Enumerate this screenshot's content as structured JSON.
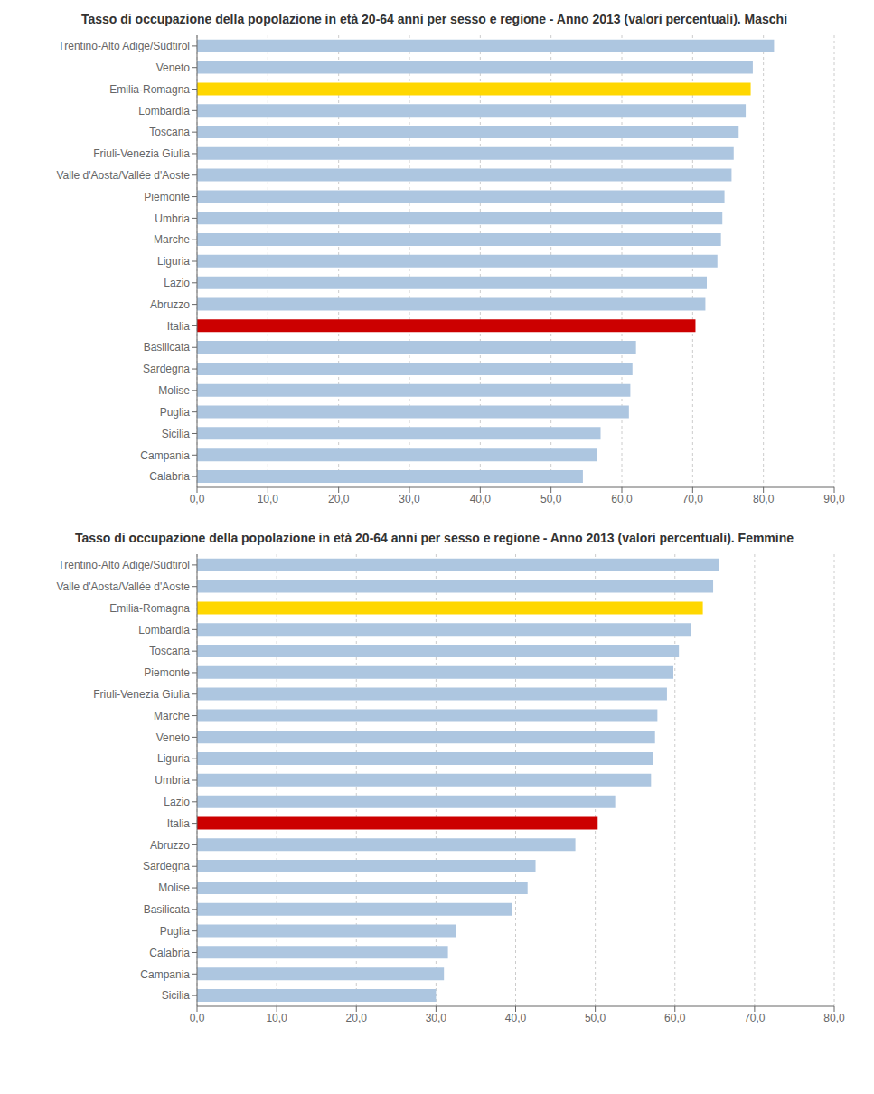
{
  "chart_data": [
    {
      "type": "bar",
      "orientation": "horizontal",
      "title": "Tasso di occupazione della popolazione in età 20-64 anni per sesso e regione - Anno 2013  (valori percentuali). Maschi",
      "categories": [
        "Trentino-Alto Adige/Südtirol",
        "Veneto",
        "Emilia-Romagna",
        "Lombardia",
        "Toscana",
        "Friuli-Venezia Giulia",
        "Valle d'Aosta/Vallée d'Aoste",
        "Piemonte",
        "Umbria",
        "Marche",
        "Liguria",
        "Lazio",
        "Abruzzo",
        "Italia",
        "Basilicata",
        "Sardegna",
        "Molise",
        "Puglia",
        "Sicilia",
        "Campania",
        "Calabria"
      ],
      "values": [
        81.5,
        78.5,
        78.2,
        77.5,
        76.5,
        75.8,
        75.5,
        74.5,
        74.2,
        74.0,
        73.5,
        72.0,
        71.8,
        70.4,
        62.0,
        61.5,
        61.2,
        61.0,
        57.0,
        56.5,
        54.5
      ],
      "colors": [
        "#adc6e0",
        "#adc6e0",
        "#FFD700",
        "#adc6e0",
        "#adc6e0",
        "#adc6e0",
        "#adc6e0",
        "#adc6e0",
        "#adc6e0",
        "#adc6e0",
        "#adc6e0",
        "#adc6e0",
        "#adc6e0",
        "#CC0000",
        "#adc6e0",
        "#adc6e0",
        "#adc6e0",
        "#adc6e0",
        "#adc6e0",
        "#adc6e0",
        "#adc6e0"
      ],
      "xlim": [
        0,
        90
      ],
      "xticks": [
        {
          "value": 0,
          "label": "0,0"
        },
        {
          "value": 10,
          "label": "10,0"
        },
        {
          "value": 20,
          "label": "20,0"
        },
        {
          "value": 30,
          "label": "30,0"
        },
        {
          "value": 40,
          "label": "40,0"
        },
        {
          "value": 50,
          "label": "50,0"
        },
        {
          "value": 60,
          "label": "60,0"
        },
        {
          "value": 70,
          "label": "70,0"
        },
        {
          "value": 80,
          "label": "80,0"
        },
        {
          "value": 90,
          "label": "90,0"
        }
      ],
      "grid": true
    },
    {
      "type": "bar",
      "orientation": "horizontal",
      "title": "Tasso di occupazione della popolazione in età 20-64 anni per sesso e regione - Anno 2013  (valori percentuali). Femmine",
      "categories": [
        "Trentino-Alto Adige/Südtirol",
        "Valle d'Aosta/Vallée d'Aoste",
        "Emilia-Romagna",
        "Lombardia",
        "Toscana",
        "Piemonte",
        "Friuli-Venezia Giulia",
        "Marche",
        "Veneto",
        "Liguria",
        "Umbria",
        "Lazio",
        "Italia",
        "Abruzzo",
        "Sardegna",
        "Molise",
        "Basilicata",
        "Puglia",
        "Calabria",
        "Campania",
        "Sicilia"
      ],
      "values": [
        65.5,
        64.8,
        63.5,
        62.0,
        60.5,
        59.8,
        59.0,
        57.8,
        57.5,
        57.2,
        57.0,
        52.5,
        50.3,
        47.5,
        42.5,
        41.5,
        39.5,
        32.5,
        31.5,
        31.0,
        30.0
      ],
      "colors": [
        "#adc6e0",
        "#adc6e0",
        "#FFD700",
        "#adc6e0",
        "#adc6e0",
        "#adc6e0",
        "#adc6e0",
        "#adc6e0",
        "#adc6e0",
        "#adc6e0",
        "#adc6e0",
        "#adc6e0",
        "#CC0000",
        "#adc6e0",
        "#adc6e0",
        "#adc6e0",
        "#adc6e0",
        "#adc6e0",
        "#adc6e0",
        "#adc6e0",
        "#adc6e0"
      ],
      "xlim": [
        0,
        80
      ],
      "xticks": [
        {
          "value": 0,
          "label": "0,0"
        },
        {
          "value": 10,
          "label": "10,0"
        },
        {
          "value": 20,
          "label": "20,0"
        },
        {
          "value": 30,
          "label": "30,0"
        },
        {
          "value": 40,
          "label": "40,0"
        },
        {
          "value": 50,
          "label": "50,0"
        },
        {
          "value": 60,
          "label": "60,0"
        },
        {
          "value": 70,
          "label": "70,0"
        },
        {
          "value": 80,
          "label": "80,0"
        }
      ],
      "grid": true
    }
  ]
}
